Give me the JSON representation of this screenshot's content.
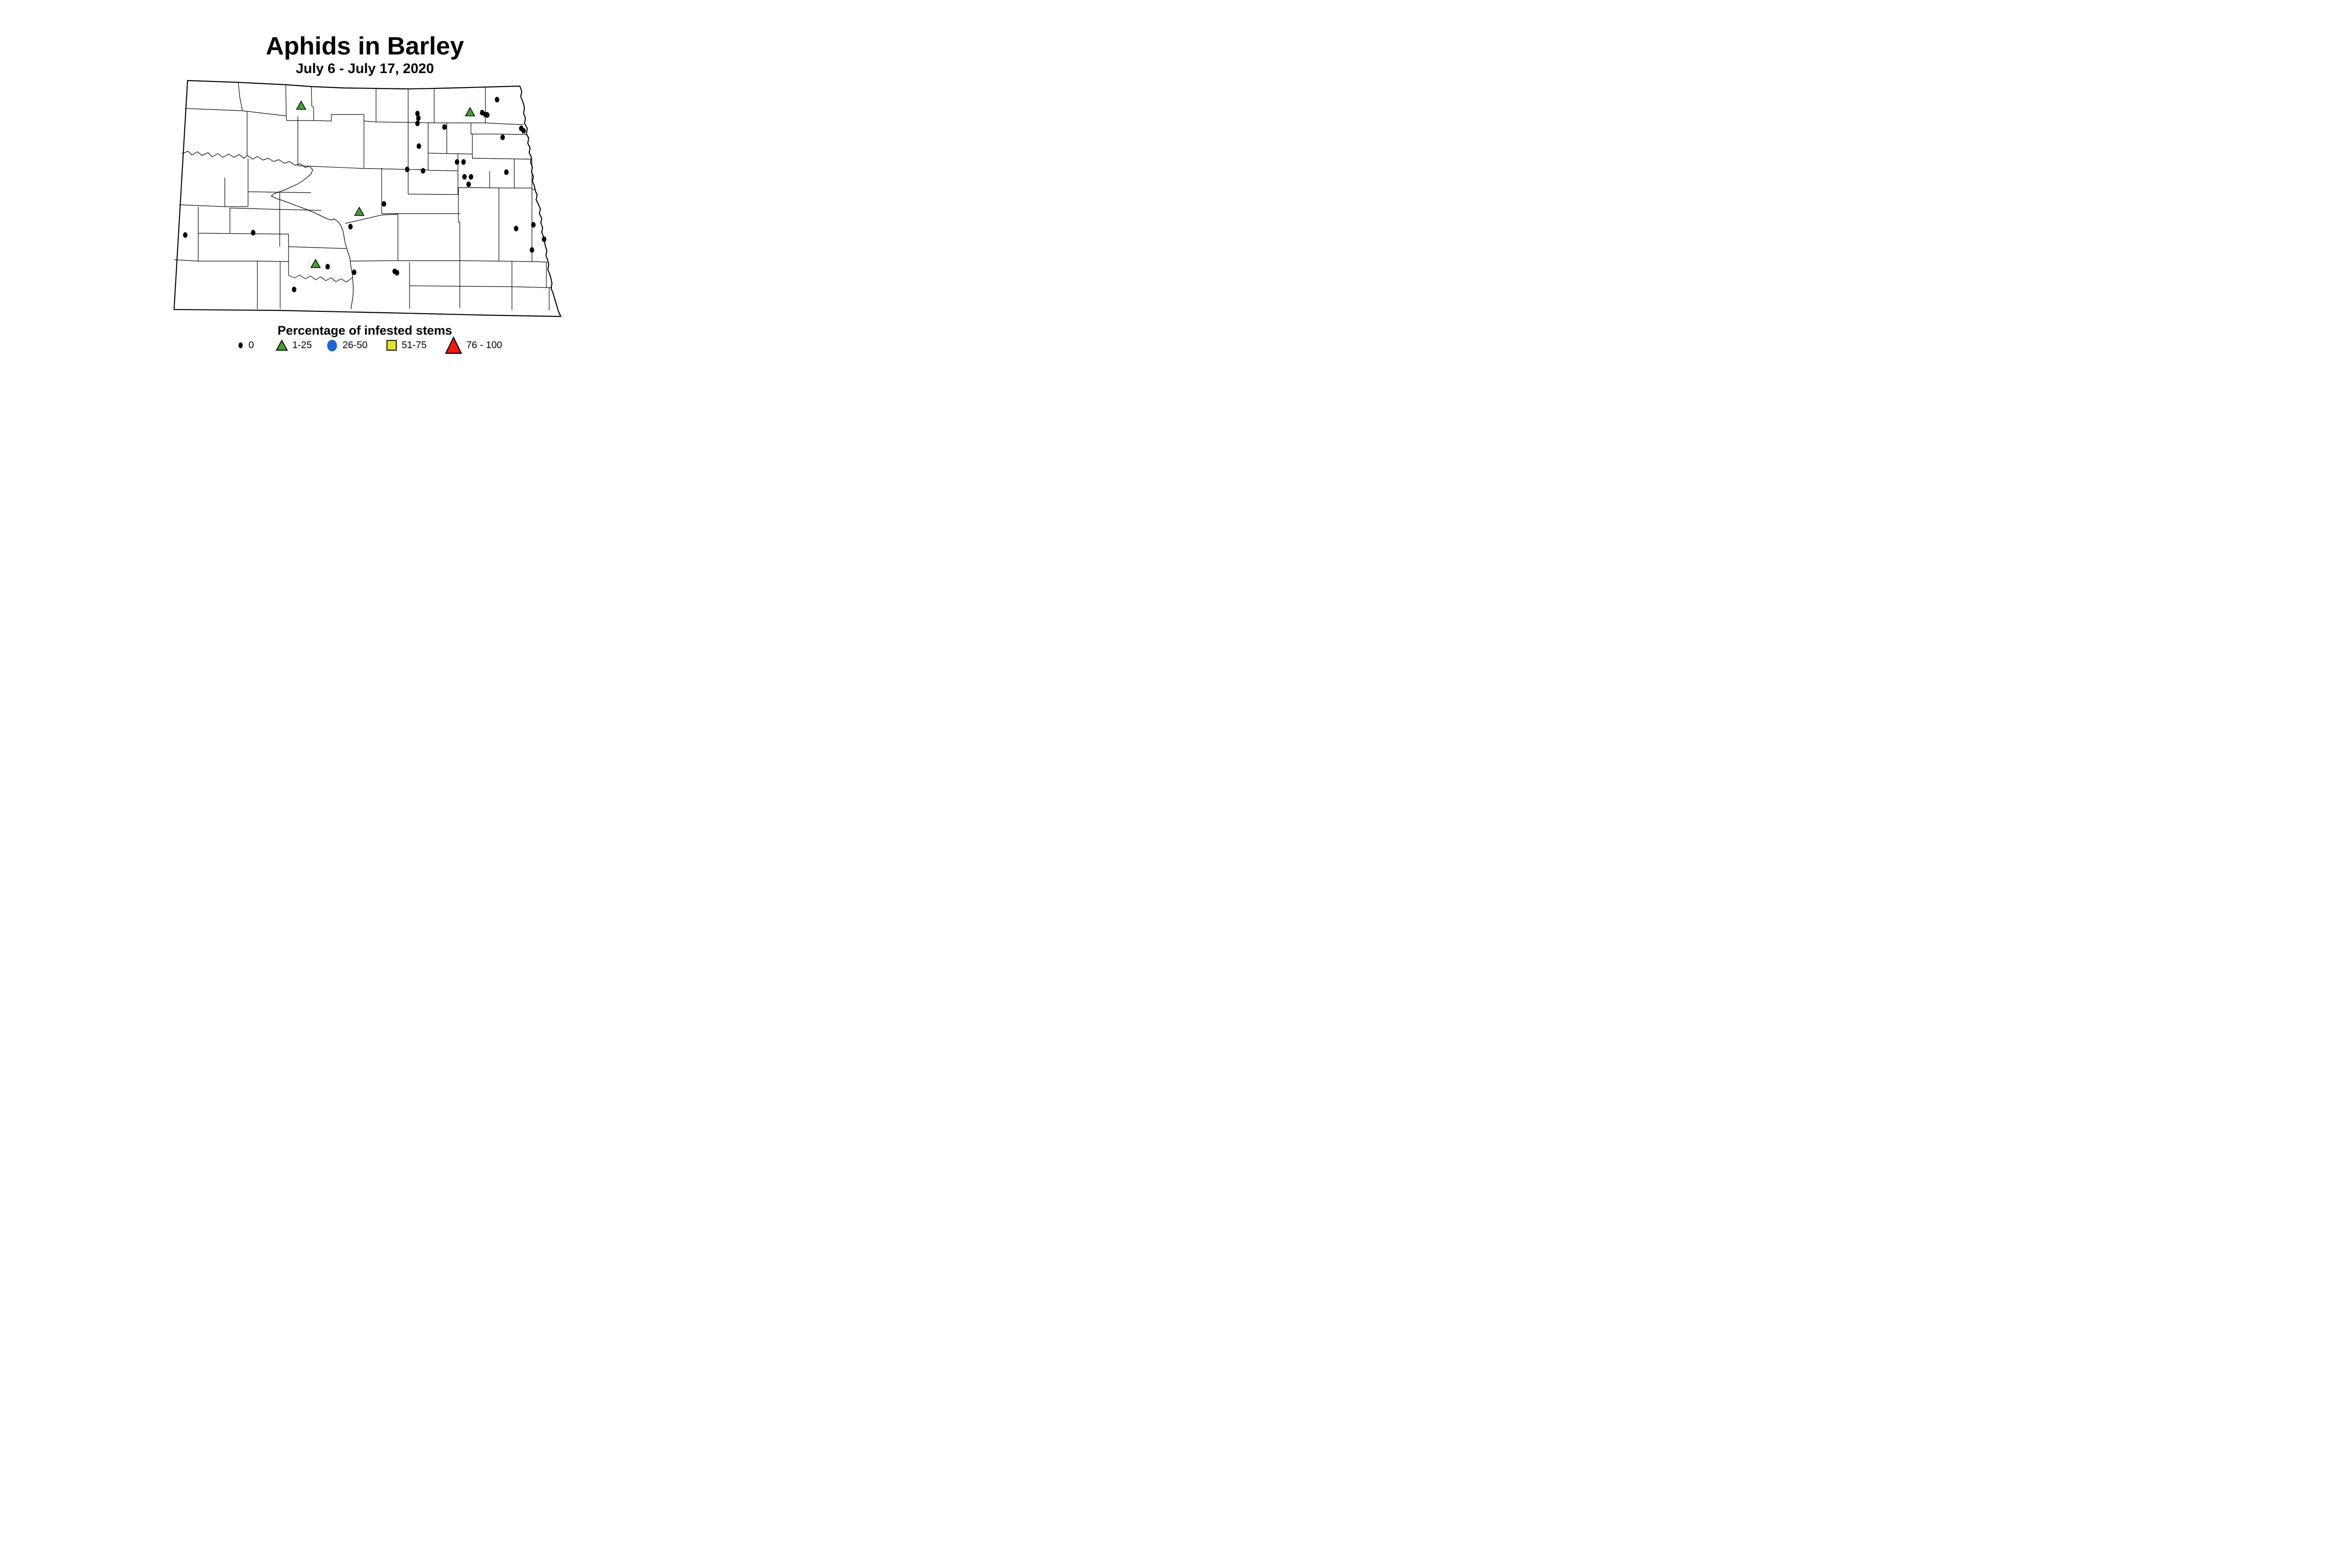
{
  "title": "Aphids in Barley",
  "subtitle": "July 6 - July 17, 2020",
  "legend": {
    "title": "Percentage of infested stems",
    "items": [
      {
        "label": "0",
        "marker": "dot",
        "color": "#000000"
      },
      {
        "label": "1-25",
        "marker": "triangle",
        "color": "#3EA42C"
      },
      {
        "label": "26-50",
        "marker": "circle",
        "color": "#1C64DB"
      },
      {
        "label": "51-75",
        "marker": "square",
        "color": "#E2E32E"
      },
      {
        "label": "76 - 100",
        "marker": "triangle-large",
        "color": "#FA1510"
      }
    ]
  },
  "chart_data": {
    "type": "scatter",
    "subtype": "point-map",
    "region": "North Dakota counties",
    "title": "Aphids in Barley",
    "subtitle": "July 6 - July 17, 2020",
    "legend_title": "Percentage of infested stems",
    "coord_space": [
      1568,
      816
    ],
    "series": [
      {
        "name": "0",
        "marker": "dot",
        "color": "#000000",
        "points": [
          [
            897,
            244
          ],
          [
            899,
            254
          ],
          [
            897,
            265
          ],
          [
            955,
            273
          ],
          [
            1068,
            214
          ],
          [
            1036,
            242
          ],
          [
            1043,
            246
          ],
          [
            1047,
            247
          ],
          [
            1120,
            276
          ],
          [
            1125,
            281
          ],
          [
            1080,
            295
          ],
          [
            900,
            314
          ],
          [
            875,
            364
          ],
          [
            909,
            367
          ],
          [
            982,
            348
          ],
          [
            996,
            348
          ],
          [
            1088,
            370
          ],
          [
            998,
            380
          ],
          [
            1012,
            380
          ],
          [
            1007,
            396
          ],
          [
            825,
            438
          ],
          [
            753,
            487
          ],
          [
            544,
            500
          ],
          [
            398,
            505
          ],
          [
            1109,
            491
          ],
          [
            1146,
            483
          ],
          [
            1169,
            514
          ],
          [
            1143,
            537
          ],
          [
            704,
            573
          ],
          [
            761,
            585
          ],
          [
            848,
            583
          ],
          [
            853,
            586
          ],
          [
            632,
            622
          ]
        ]
      },
      {
        "name": "1-25",
        "marker": "triangle",
        "color": "#3EA42C",
        "points": [
          [
            647,
            227
          ],
          [
            1010,
            241
          ],
          [
            772,
            455
          ],
          [
            678,
            567
          ]
        ]
      },
      {
        "name": "26-50",
        "marker": "circle",
        "color": "#1C64DB",
        "points": []
      },
      {
        "name": "51-75",
        "marker": "square",
        "color": "#E2E32E",
        "points": []
      },
      {
        "name": "76 - 100",
        "marker": "triangle-large",
        "color": "#FA1510",
        "points": []
      }
    ]
  }
}
